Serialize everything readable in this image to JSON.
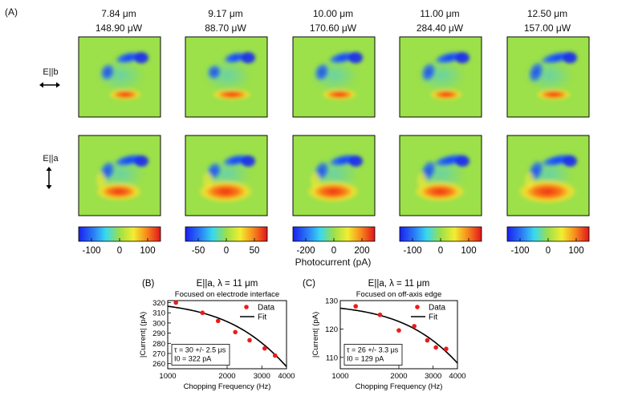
{
  "panel_a": {
    "label": "(A)",
    "wavelengths": [
      "7.84 μm",
      "9.17 μm",
      "10.00 μm",
      "11.00 μm",
      "12.50 μm"
    ],
    "powers": [
      "148.90 μW",
      "88.70 μW",
      "170.60 μW",
      "284.40 μW",
      "157.00 μW"
    ],
    "row_labels": [
      "E||b",
      "E||a"
    ],
    "colorbar_ticks": [
      [
        "-100",
        "0",
        "100"
      ],
      [
        "-50",
        "0",
        "50"
      ],
      [
        "-200",
        "0",
        "200"
      ],
      [
        "-100",
        "0",
        "100"
      ],
      [
        "-100",
        "0",
        "100"
      ]
    ],
    "colorbar_title": "Photocurrent (pA)",
    "colors": {
      "map_background": "#9ce04a",
      "negative": "#1a3cf0",
      "positive": "#f03018"
    }
  },
  "chart_data": [
    {
      "type": "scatter",
      "panel": "(B)",
      "title": "E||a, λ = 11 μm",
      "subtitle": "Focused on electrode interface",
      "xlabel": "Chopping Frequency (Hz)",
      "ylabel": "|Current| (pA)",
      "xscale": "log",
      "xlim": [
        1000,
        4000
      ],
      "ylim": [
        255,
        322
      ],
      "xticks": [
        "1000",
        "2000",
        "3000",
        "4000"
      ],
      "yticks": [
        "260",
        "270",
        "280",
        "290",
        "300",
        "310",
        "320"
      ],
      "series": [
        {
          "name": "Data",
          "x": [
            1100,
            1500,
            1800,
            2200,
            2600,
            3100,
            3500
          ],
          "y": [
            320,
            310,
            302,
            291,
            283,
            275,
            268
          ]
        },
        {
          "name": "Fit",
          "tau": 30,
          "I0": 322
        }
      ],
      "legend": [
        "Data",
        "Fit"
      ],
      "annotation": [
        "τ = 30 +/- 2.5 μs",
        "I0 = 322 pA"
      ]
    },
    {
      "type": "scatter",
      "panel": "(C)",
      "title": "E||a, λ = 11 μm",
      "subtitle": "Focused on off-axis edge",
      "xlabel": "Chopping Frequency (Hz)",
      "ylabel": "|Current| (pA)",
      "xscale": "log",
      "xlim": [
        1000,
        4000
      ],
      "ylim": [
        106,
        130
      ],
      "xticks": [
        "1000",
        "2000",
        "3000",
        "4000"
      ],
      "yticks": [
        "110",
        "120",
        "130"
      ],
      "series": [
        {
          "name": "Data",
          "x": [
            1200,
            1600,
            2000,
            2400,
            2800,
            3100,
            3500
          ],
          "y": [
            128,
            125,
            119.5,
            121,
            116,
            113.5,
            113
          ]
        },
        {
          "name": "Fit",
          "tau": 26,
          "I0": 129
        }
      ],
      "legend": [
        "Data",
        "Fit"
      ],
      "annotation": [
        "τ = 26 +/- 3.3 μs",
        "I0 = 129 pA"
      ]
    }
  ]
}
